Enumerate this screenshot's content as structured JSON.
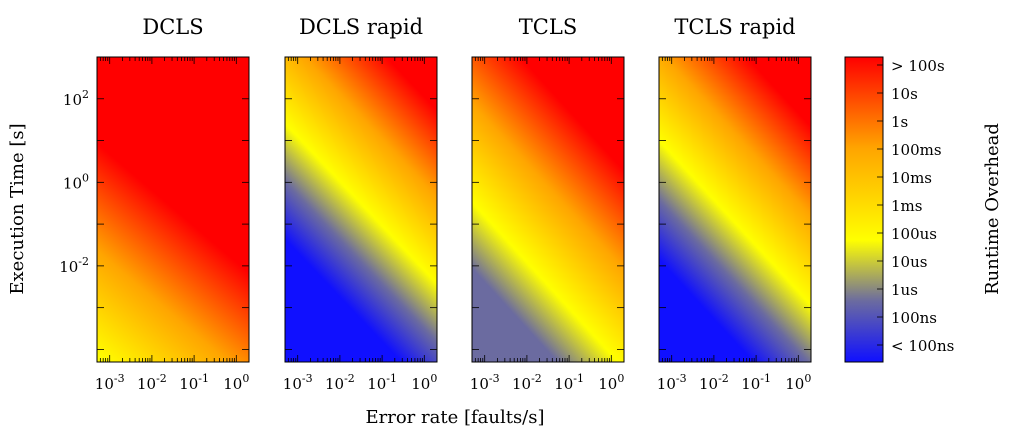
{
  "chart_data": {
    "type": "heatmap",
    "xlabel": "Error rate [faults/s]",
    "ylabel": "Execution Time [s]",
    "x_scale": "log",
    "y_scale": "log",
    "xlim": [
      0.0005,
      2
    ],
    "ylim": [
      5e-05,
      1000
    ],
    "x_ticks": [
      "-3",
      "-2",
      "-1",
      "0"
    ],
    "y_ticks": [
      "-2",
      "0",
      "2"
    ],
    "tick_base": "10",
    "grid": false,
    "panels": [
      {
        "title": "DCLS",
        "model": "dcls"
      },
      {
        "title": "DCLS rapid",
        "model": "dcls_rapid"
      },
      {
        "title": "TCLS",
        "model": "tcls"
      },
      {
        "title": "TCLS rapid",
        "model": "tcls_rapid"
      }
    ],
    "colorbar": {
      "label": "Runtime Overhead",
      "position": "right",
      "ticks": [
        "> 100s",
        "10s",
        "1s",
        "100ms",
        "10ms",
        "1ms",
        "100us",
        "10us",
        "1us",
        "100ns",
        "< 100ns"
      ],
      "colors": [
        {
          "stop": 0.0,
          "color": "#1010ff"
        },
        {
          "stop": 0.2,
          "color": "#6b6ba0"
        },
        {
          "stop": 0.4,
          "color": "#ffff00"
        },
        {
          "stop": 0.7,
          "color": "#ffa500"
        },
        {
          "stop": 1.0,
          "color": "#ff0000"
        }
      ]
    }
  }
}
